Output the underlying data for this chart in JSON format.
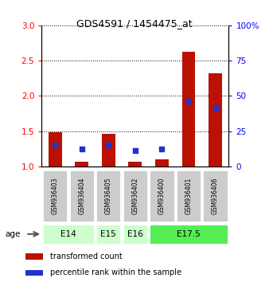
{
  "title": "GDS4591 / 1454475_at",
  "samples": [
    "GSM936403",
    "GSM936404",
    "GSM936405",
    "GSM936402",
    "GSM936400",
    "GSM936401",
    "GSM936406"
  ],
  "transformed_count": [
    1.48,
    1.07,
    1.46,
    1.07,
    1.1,
    2.62,
    2.32
  ],
  "percentile_rank": [
    15.0,
    12.5,
    15.0,
    11.0,
    12.5,
    46.0,
    42.0
  ],
  "age_group_spans": [
    {
      "label": "E14",
      "start": 0,
      "end": 2,
      "color": "#ccffcc"
    },
    {
      "label": "E15",
      "start": 2,
      "end": 3,
      "color": "#ccffcc"
    },
    {
      "label": "E16",
      "start": 3,
      "end": 4,
      "color": "#ccffcc"
    },
    {
      "label": "E17.5",
      "start": 4,
      "end": 7,
      "color": "#55ee55"
    }
  ],
  "ylim_left": [
    1.0,
    3.0
  ],
  "ylim_right": [
    0,
    100
  ],
  "yticks_left": [
    1.0,
    1.5,
    2.0,
    2.5,
    3.0
  ],
  "yticks_right": [
    0,
    25,
    50,
    75,
    100
  ],
  "bar_color": "#bb1100",
  "dot_color": "#2233cc",
  "bar_width": 0.5,
  "dot_marker": "s",
  "dot_size": 22,
  "sample_box_color": "#cccccc",
  "legend_labels": [
    "transformed count",
    "percentile rank within the sample"
  ]
}
